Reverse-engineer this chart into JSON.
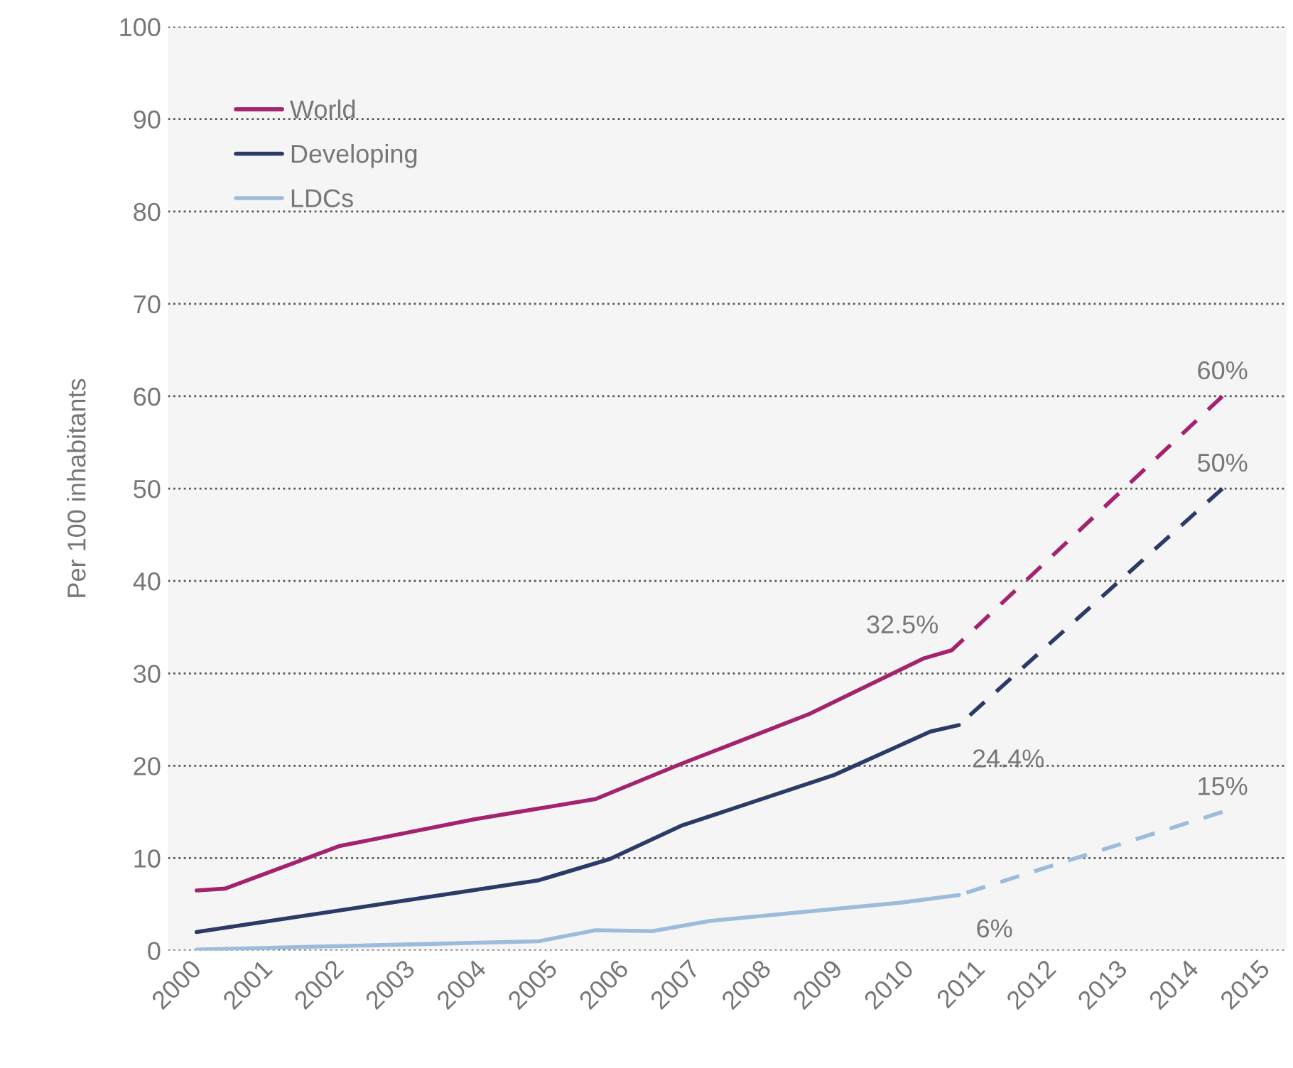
{
  "chart_data": {
    "type": "line",
    "ylabel": "Per 100 inhabitants",
    "xlim": [
      1999.7,
      2015.4
    ],
    "xticks": [
      2000,
      2001,
      2002,
      2003,
      2004,
      2005,
      2006,
      2007,
      2008,
      2009,
      2010,
      2011,
      2012,
      2013,
      2014,
      2015
    ],
    "ylim": [
      0,
      100
    ],
    "yticks": [
      0,
      10,
      20,
      30,
      40,
      50,
      60,
      70,
      80,
      90,
      100
    ],
    "grid": "y",
    "legend": "top left",
    "line_style": "solid",
    "series": [
      {
        "name": "World",
        "color": "#a3236f",
        "x": [
          2000.1,
          2000.5,
          2002.1,
          2004.0,
          2005.7,
          2006.9,
          2008.7,
          2010.3,
          2010.7
        ],
        "values": [
          6.5,
          6.7,
          11.3,
          14.2,
          16.4,
          20.2,
          25.6,
          31.6,
          32.5
        ]
      },
      {
        "name": "Developing",
        "color": "#2b3a67",
        "x": [
          2000.1,
          2004.9,
          2005.9,
          2006.9,
          2009.05,
          2010.4,
          2010.8
        ],
        "values": [
          2.0,
          7.6,
          9.9,
          13.5,
          19,
          23.7,
          24.4
        ]
      },
      {
        "name": "LDCs",
        "color": "#9dbcdc",
        "x": [
          2000.1,
          2004.9,
          2005.7,
          2006.5,
          2007.3,
          2010.0,
          2010.8
        ],
        "values": [
          0.1,
          1.0,
          2.2,
          2.1,
          3.2,
          5.2,
          6
        ]
      },
      {
        "color": "#a3236f",
        "line_style": "dashed",
        "x": [
          2010.7,
          2014.5
        ],
        "values": [
          32.5,
          60
        ],
        "value_labels": [
          "32.5%",
          "60%"
        ]
      },
      {
        "color": "#2b3a67",
        "line_style": "dashed",
        "x": [
          2010.8,
          2014.5
        ],
        "values": [
          24.4,
          50
        ],
        "value_labels": [
          "24.4%",
          "50%"
        ]
      },
      {
        "color": "#9dbcdc",
        "line_style": "dashed",
        "x": [
          2010.8,
          2014.5
        ],
        "values": [
          6,
          15
        ],
        "value_labels": [
          "6%",
          "15%"
        ]
      }
    ]
  }
}
